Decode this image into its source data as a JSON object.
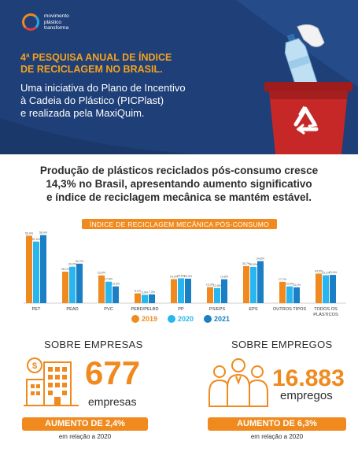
{
  "header": {
    "logo_lines": [
      "movimento",
      "plástico",
      "transforma"
    ],
    "title_lines": [
      "4ª PESQUISA ANUAL DE ÍNDICE",
      "DE RECICLAGEM NO BRASIL."
    ],
    "subtitle_lines": [
      "Uma iniciativa do Plano de Incentivo",
      "à Cadeia do Plástico (PICPlast)",
      "e realizada pela MaxiQuim."
    ]
  },
  "headline_lines": [
    "Produção de plásticos reciclados pós-consumo cresce",
    "14,3% no Brasil, apresentando aumento significativo",
    "e índice de reciclagem mecânica se mantém estável."
  ],
  "colors": {
    "navy": "#1e3f78",
    "orange": "#f08a1e",
    "light_blue": "#29b6f0",
    "blue": "#1a7fc4"
  },
  "chart_data": {
    "type": "bar",
    "title": "ÍNDICE DE RECICLAGEM MECÂNICA PÓS-CONSUMO",
    "categories": [
      "PET",
      "PEAD",
      "PVC",
      "PEBD/PELBD",
      "PP",
      "PS/EPS",
      "EPS",
      "OUTROS TIPOS",
      "TODOS OS PLÁSTICOS"
    ],
    "series": [
      {
        "name": "2019",
        "color": "#f08a1e",
        "values": [
          55.9,
          26.1,
          23.0,
          8.1,
          19.9,
          13.3,
          30.7,
          17.7,
          24.5
        ],
        "labels": [
          "55,9%",
          "26,1%",
          "23,0%",
          "8,1%",
          "19,9%",
          "13,3%",
          "30,7%",
          "17,7%",
          "24,5%"
        ]
      },
      {
        "name": "2020",
        "color": "#29b6f0",
        "values": [
          51.0,
          30.2,
          17.8,
          6.9,
          20.6,
          12.5,
          30.0,
          13.9,
          23.1
        ],
        "labels": [
          "51,0%",
          "30,2%",
          "17,8%",
          "6,9%",
          "20,6%",
          "12,5%",
          "30,0%",
          "13,9%",
          "23,1%"
        ]
      },
      {
        "name": "2021",
        "color": "#1a7fc4",
        "values": [
          56.4,
          32.7,
          13.9,
          7.3,
          20.3,
          19.8,
          34.8,
          13.1,
          23.4
        ],
        "labels": [
          "56,4%",
          "32,7%",
          "13,9%",
          "7,3%",
          "20,3%",
          "19,8%",
          "34,8%",
          "13,1%",
          "23,4%"
        ]
      }
    ],
    "legend": "bottom",
    "ylim": [
      0,
      60
    ],
    "grid": false
  },
  "empresas": {
    "section_title": "SOBRE EMPRESAS",
    "value": "677",
    "unit": "empresas",
    "increase": "AUMENTO DE 2,4%",
    "note": "em relação a 2020"
  },
  "empregos": {
    "section_title": "SOBRE EMPREGOS",
    "value": "16.883",
    "unit": "empregos",
    "increase": "AUMENTO DE 6,3%",
    "note": "em relação a 2020"
  }
}
